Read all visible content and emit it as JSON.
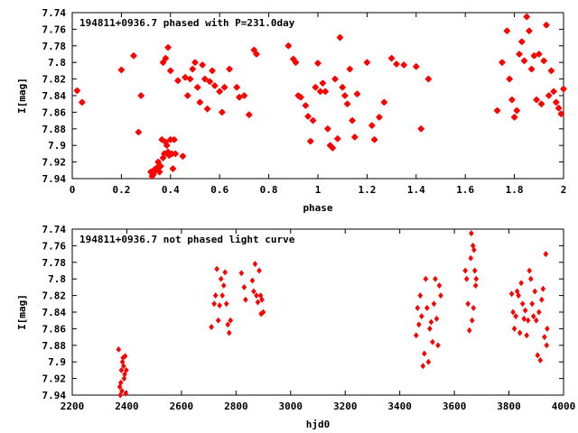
{
  "colors": {
    "points": "#ff0000",
    "axes": "#000000",
    "background": "#ffffff"
  },
  "chart_data": [
    {
      "type": "scatter",
      "title": "194811+0936.7 phased with P=231.0day",
      "xlabel": "phase",
      "ylabel": "I[mag]",
      "xlim": [
        0,
        2
      ],
      "ylim": [
        7.94,
        7.74
      ],
      "y_inverted": true,
      "xticks": [
        "0",
        "0.2",
        "0.4",
        "0.6",
        "0.8",
        "1",
        "1.2",
        "1.4",
        "1.6",
        "1.8",
        "2"
      ],
      "yticks": [
        "7.74",
        "7.76",
        "7.78",
        "7.8",
        "7.82",
        "7.84",
        "7.86",
        "7.88",
        "7.9",
        "7.92",
        "7.94"
      ],
      "grid": false,
      "legend": "none",
      "marker": "star",
      "series": [
        {
          "points": [
            [
              0.02,
              7.834
            ],
            [
              0.04,
              7.848
            ],
            [
              0.2,
              7.809
            ],
            [
              0.25,
              7.792
            ],
            [
              0.27,
              7.884
            ],
            [
              0.28,
              7.84
            ],
            [
              0.32,
              7.932
            ],
            [
              0.325,
              7.937
            ],
            [
              0.33,
              7.935
            ],
            [
              0.335,
              7.929
            ],
            [
              0.34,
              7.93
            ],
            [
              0.345,
              7.927
            ],
            [
              0.35,
              7.92
            ],
            [
              0.355,
              7.932
            ],
            [
              0.36,
              7.925
            ],
            [
              0.365,
              7.893
            ],
            [
              0.37,
              7.915
            ],
            [
              0.375,
              7.91
            ],
            [
              0.38,
              7.896
            ],
            [
              0.385,
              7.9
            ],
            [
              0.39,
              7.908
            ],
            [
              0.395,
              7.912
            ],
            [
              0.4,
              7.893
            ],
            [
              0.405,
              7.91
            ],
            [
              0.41,
              7.928
            ],
            [
              0.415,
              7.893
            ],
            [
              0.42,
              7.91
            ],
            [
              0.37,
              7.8
            ],
            [
              0.38,
              7.795
            ],
            [
              0.39,
              7.782
            ],
            [
              0.4,
              7.81
            ],
            [
              0.43,
              7.822
            ],
            [
              0.45,
              7.913
            ],
            [
              0.46,
              7.818
            ],
            [
              0.47,
              7.84
            ],
            [
              0.48,
              7.82
            ],
            [
              0.49,
              7.808
            ],
            [
              0.5,
              7.8
            ],
            [
              0.51,
              7.83
            ],
            [
              0.52,
              7.848
            ],
            [
              0.53,
              7.803
            ],
            [
              0.54,
              7.82
            ],
            [
              0.55,
              7.856
            ],
            [
              0.56,
              7.823
            ],
            [
              0.57,
              7.81
            ],
            [
              0.58,
              7.828
            ],
            [
              0.6,
              7.835
            ],
            [
              0.61,
              7.86
            ],
            [
              0.62,
              7.83
            ],
            [
              0.64,
              7.808
            ],
            [
              0.67,
              7.83
            ],
            [
              0.68,
              7.842
            ],
            [
              0.7,
              7.84
            ],
            [
              0.72,
              7.863
            ],
            [
              0.74,
              7.785
            ],
            [
              0.75,
              7.79
            ],
            [
              0.88,
              7.78
            ],
            [
              0.9,
              7.796
            ],
            [
              0.91,
              7.8
            ],
            [
              0.92,
              7.84
            ],
            [
              0.93,
              7.842
            ],
            [
              0.95,
              7.852
            ],
            [
              0.96,
              7.865
            ],
            [
              0.97,
              7.895
            ],
            [
              0.98,
              7.87
            ],
            [
              0.99,
              7.83
            ],
            [
              1.0,
              7.801
            ],
            [
              1.01,
              7.835
            ],
            [
              1.02,
              7.825
            ],
            [
              1.03,
              7.835
            ],
            [
              1.04,
              7.88
            ],
            [
              1.05,
              7.9
            ],
            [
              1.06,
              7.903
            ],
            [
              1.07,
              7.82
            ],
            [
              1.08,
              7.892
            ],
            [
              1.09,
              7.77
            ],
            [
              1.1,
              7.83
            ],
            [
              1.11,
              7.84
            ],
            [
              1.12,
              7.85
            ],
            [
              1.13,
              7.808
            ],
            [
              1.14,
              7.87
            ],
            [
              1.15,
              7.89
            ],
            [
              1.16,
              7.838
            ],
            [
              1.2,
              7.8
            ],
            [
              1.22,
              7.876
            ],
            [
              1.23,
              7.893
            ],
            [
              1.25,
              7.866
            ],
            [
              1.27,
              7.848
            ],
            [
              1.3,
              7.795
            ],
            [
              1.32,
              7.802
            ],
            [
              1.35,
              7.803
            ],
            [
              1.4,
              7.805
            ],
            [
              1.42,
              7.88
            ],
            [
              1.45,
              7.82
            ],
            [
              1.73,
              7.858
            ],
            [
              1.75,
              7.8
            ],
            [
              1.77,
              7.762
            ],
            [
              1.78,
              7.82
            ],
            [
              1.79,
              7.845
            ],
            [
              1.8,
              7.866
            ],
            [
              1.81,
              7.858
            ],
            [
              1.82,
              7.79
            ],
            [
              1.83,
              7.775
            ],
            [
              1.84,
              7.798
            ],
            [
              1.85,
              7.745
            ],
            [
              1.86,
              7.762
            ],
            [
              1.87,
              7.808
            ],
            [
              1.88,
              7.792
            ],
            [
              1.89,
              7.845
            ],
            [
              1.9,
              7.79
            ],
            [
              1.91,
              7.85
            ],
            [
              1.92,
              7.798
            ],
            [
              1.93,
              7.755
            ],
            [
              1.94,
              7.84
            ],
            [
              1.95,
              7.81
            ],
            [
              1.96,
              7.835
            ],
            [
              1.97,
              7.848
            ],
            [
              1.98,
              7.855
            ],
            [
              1.99,
              7.862
            ],
            [
              2.0,
              7.832
            ]
          ]
        }
      ]
    },
    {
      "type": "scatter",
      "title": "194811+0936.7 not phased light curve",
      "xlabel": "hjd0",
      "ylabel": "I[mag]",
      "xlim": [
        2200,
        4000
      ],
      "ylim": [
        7.94,
        7.74
      ],
      "y_inverted": true,
      "xticks": [
        "2200",
        "2400",
        "2600",
        "2800",
        "3000",
        "3200",
        "3400",
        "3600",
        "3800",
        "4000"
      ],
      "yticks": [
        "7.74",
        "7.76",
        "7.78",
        "7.8",
        "7.82",
        "7.84",
        "7.86",
        "7.88",
        "7.9",
        "7.92",
        "7.94"
      ],
      "grid": false,
      "legend": "none",
      "marker": "diamond",
      "series": [
        {
          "points": [
            [
              2370,
              7.885
            ],
            [
              2374,
              7.93
            ],
            [
              2376,
              7.94
            ],
            [
              2378,
              7.925
            ],
            [
              2380,
              7.91
            ],
            [
              2382,
              7.935
            ],
            [
              2384,
              7.9
            ],
            [
              2386,
              7.895
            ],
            [
              2388,
              7.905
            ],
            [
              2390,
              7.92
            ],
            [
              2392,
              7.915
            ],
            [
              2394,
              7.893
            ],
            [
              2396,
              7.938
            ],
            [
              2398,
              7.91
            ],
            [
              2710,
              7.858
            ],
            [
              2720,
              7.83
            ],
            [
              2725,
              7.82
            ],
            [
              2730,
              7.788
            ],
            [
              2735,
              7.85
            ],
            [
              2740,
              7.832
            ],
            [
              2745,
              7.8
            ],
            [
              2750,
              7.82
            ],
            [
              2755,
              7.808
            ],
            [
              2760,
              7.792
            ],
            [
              2765,
              7.83
            ],
            [
              2770,
              7.855
            ],
            [
              2775,
              7.865
            ],
            [
              2780,
              7.85
            ],
            [
              2820,
              7.793
            ],
            [
              2830,
              7.81
            ],
            [
              2835,
              7.825
            ],
            [
              2860,
              7.802
            ],
            [
              2865,
              7.815
            ],
            [
              2870,
              7.782
            ],
            [
              2875,
              7.82
            ],
            [
              2880,
              7.828
            ],
            [
              2885,
              7.79
            ],
            [
              2890,
              7.82
            ],
            [
              2892,
              7.842
            ],
            [
              2895,
              7.825
            ],
            [
              2900,
              7.84
            ],
            [
              3460,
              7.868
            ],
            [
              3465,
              7.835
            ],
            [
              3470,
              7.855
            ],
            [
              3475,
              7.82
            ],
            [
              3480,
              7.845
            ],
            [
              3485,
              7.905
            ],
            [
              3490,
              7.89
            ],
            [
              3495,
              7.8
            ],
            [
              3500,
              7.835
            ],
            [
              3505,
              7.9
            ],
            [
              3510,
              7.86
            ],
            [
              3515,
              7.852
            ],
            [
              3520,
              7.876
            ],
            [
              3525,
              7.83
            ],
            [
              3530,
              7.8
            ],
            [
              3535,
              7.848
            ],
            [
              3540,
              7.88
            ],
            [
              3545,
              7.808
            ],
            [
              3550,
              7.82
            ],
            [
              3640,
              7.79
            ],
            [
              3645,
              7.8
            ],
            [
              3650,
              7.83
            ],
            [
              3655,
              7.862
            ],
            [
              3660,
              7.775
            ],
            [
              3662,
              7.745
            ],
            [
              3665,
              7.85
            ],
            [
              3668,
              7.76
            ],
            [
              3670,
              7.835
            ],
            [
              3672,
              7.765
            ],
            [
              3675,
              7.79
            ],
            [
              3678,
              7.808
            ],
            [
              3680,
              7.8
            ],
            [
              3810,
              7.818
            ],
            [
              3815,
              7.84
            ],
            [
              3820,
              7.86
            ],
            [
              3825,
              7.845
            ],
            [
              3830,
              7.815
            ],
            [
              3835,
              7.82
            ],
            [
              3840,
              7.865
            ],
            [
              3845,
              7.805
            ],
            [
              3850,
              7.83
            ],
            [
              3855,
              7.848
            ],
            [
              3860,
              7.838
            ],
            [
              3865,
              7.868
            ],
            [
              3870,
              7.85
            ],
            [
              3875,
              7.79
            ],
            [
              3880,
              7.8
            ],
            [
              3885,
              7.83
            ],
            [
              3890,
              7.845
            ],
            [
              3895,
              7.815
            ],
            [
              3900,
              7.85
            ],
            [
              3905,
              7.892
            ],
            [
              3910,
              7.84
            ],
            [
              3915,
              7.898
            ],
            [
              3920,
              7.825
            ],
            [
              3925,
              7.812
            ],
            [
              3930,
              7.87
            ],
            [
              3935,
              7.77
            ],
            [
              3938,
              7.88
            ],
            [
              3940,
              7.86
            ]
          ]
        }
      ]
    }
  ]
}
